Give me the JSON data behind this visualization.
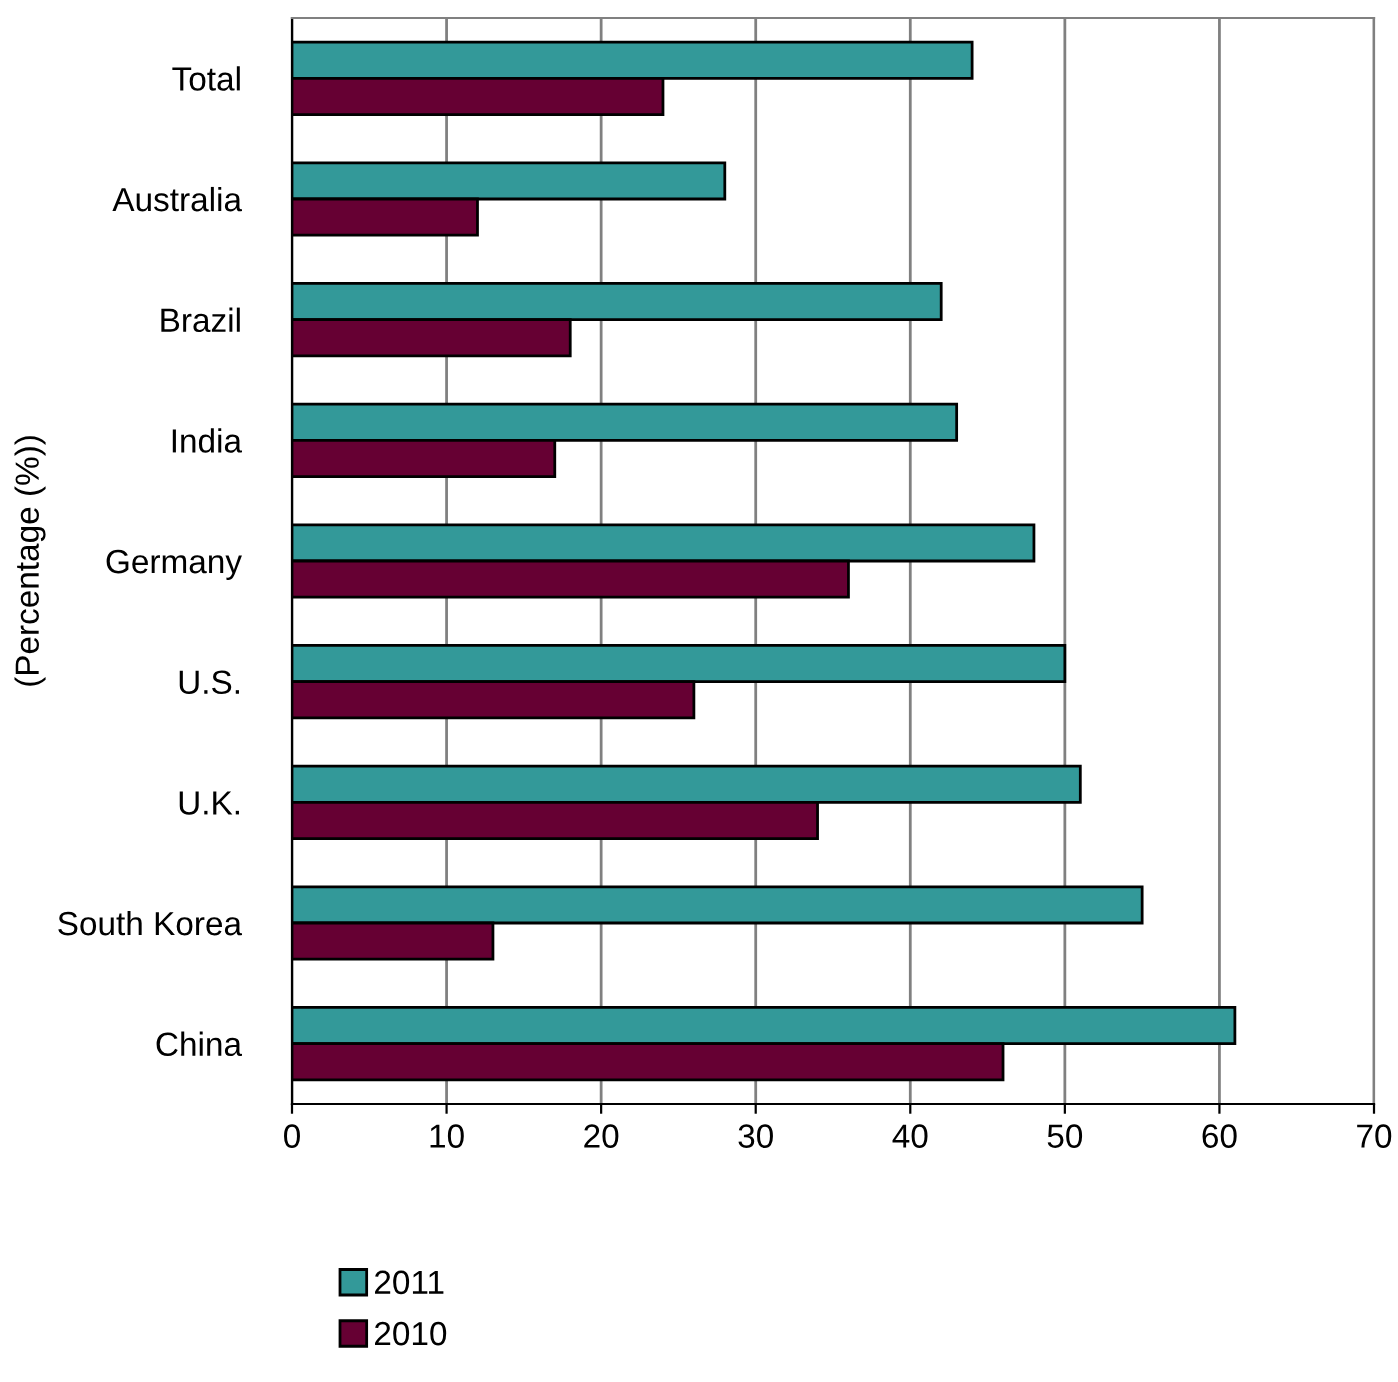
{
  "chart_data": {
    "type": "bar",
    "orientation": "horizontal",
    "ylabel": "(Percentage (%))",
    "categories": [
      "Total",
      "Australia",
      "Brazil",
      "India",
      "Germany",
      "U.S.",
      "U.K.",
      "South Korea",
      "China"
    ],
    "series": [
      {
        "name": "2011",
        "color": "#339999",
        "values": [
          44,
          28,
          42,
          43,
          48,
          50,
          51,
          55,
          61
        ]
      },
      {
        "name": "2010",
        "color": "#660033",
        "values": [
          24,
          12,
          18,
          17,
          36,
          26,
          34,
          13,
          46
        ]
      }
    ],
    "xlim": [
      0,
      70
    ],
    "xticks": [
      0,
      10,
      20,
      30,
      40,
      50,
      60,
      70
    ],
    "grid": "x",
    "legend": "bottom"
  }
}
